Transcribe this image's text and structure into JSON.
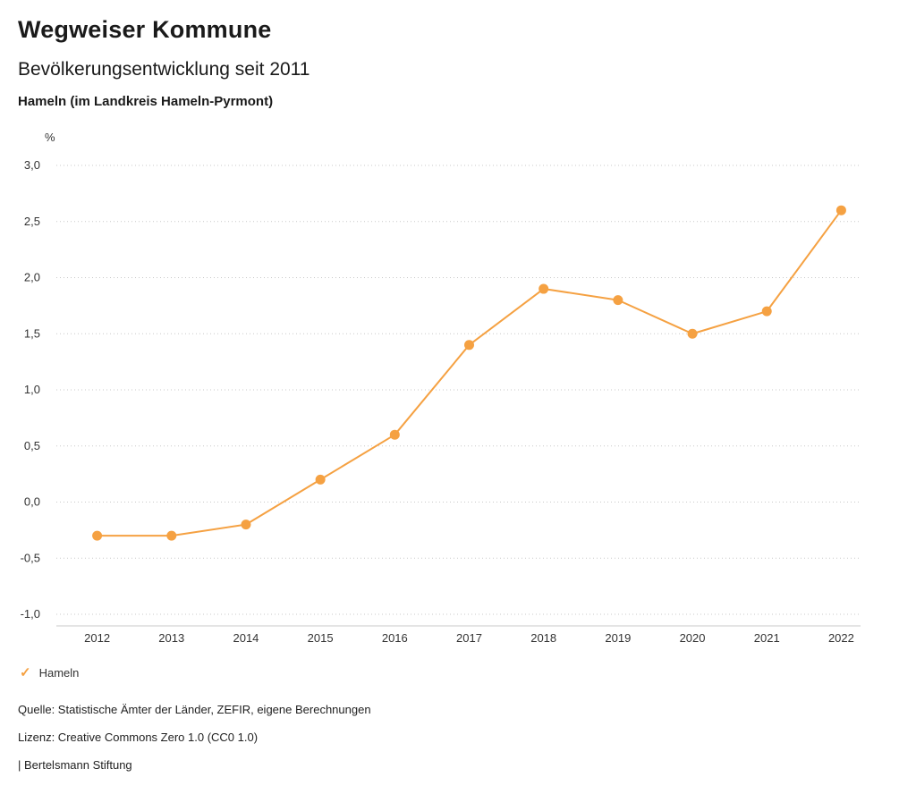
{
  "header": {
    "title": "Wegweiser Kommune",
    "subtitle": "Bevölkerungsentwicklung seit 2011",
    "region": "Hameln (im Landkreis Hameln-Pyrmont)"
  },
  "colors": {
    "accent": "#F5A142",
    "grid": "#c8c8c8",
    "axis_text": "#333333"
  },
  "chart_data": {
    "type": "line",
    "title": "Bevölkerungsentwicklung seit 2011",
    "subtitle": "Hameln (im Landkreis Hameln-Pyrmont)",
    "xlabel": "",
    "ylabel": "%",
    "unit_label": "%",
    "x": [
      2012,
      2013,
      2014,
      2015,
      2016,
      2017,
      2018,
      2019,
      2020,
      2021,
      2022
    ],
    "series": [
      {
        "name": "Hameln",
        "color": "#F5A142",
        "values": [
          -0.3,
          -0.3,
          -0.2,
          0.2,
          0.6,
          1.4,
          1.9,
          1.8,
          1.5,
          1.7,
          2.6
        ]
      }
    ],
    "ylim": [
      -1.0,
      3.0
    ],
    "ytick_values": [
      3.0,
      2.5,
      2.0,
      1.5,
      1.0,
      0.5,
      0.0,
      -0.5,
      -1.0
    ],
    "ytick_labels": [
      "3,0",
      "2,5",
      "2,0",
      "1,5",
      "1,0",
      "0,5",
      "0,0",
      "-0,5",
      "-1,0"
    ],
    "grid": "horizontal dotted",
    "legend_position": "bottom-left"
  },
  "legend": {
    "items": [
      {
        "label": "Hameln",
        "marker": "check",
        "color": "#F5A142"
      }
    ]
  },
  "footer": {
    "source": "Quelle: Statistische Ämter der Länder, ZEFIR, eigene Berechnungen",
    "license": "Lizenz: Creative Commons Zero 1.0 (CC0 1.0)",
    "attribution": "| Bertelsmann Stiftung"
  }
}
